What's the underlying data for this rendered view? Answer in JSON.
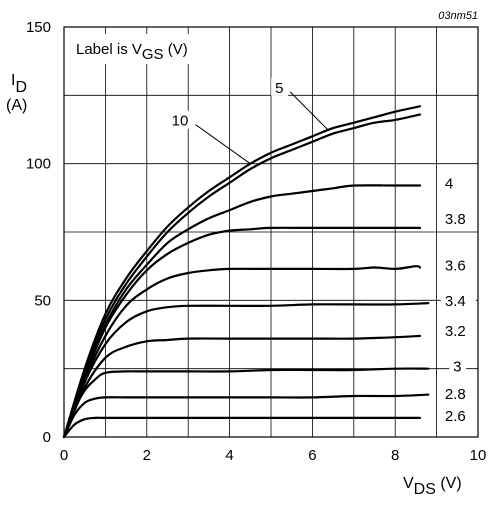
{
  "chart_data": {
    "type": "line",
    "reference_code": "03nm51",
    "legend_note": {
      "prefix": "Label is V",
      "sub": "GS",
      "suffix": " (V)"
    },
    "xlabel": {
      "main": "V",
      "sub": "DS",
      "unit": " (V)"
    },
    "ylabel": {
      "main": "I",
      "sub": "D",
      "unit": "(A)"
    },
    "xlim": [
      0,
      10
    ],
    "ylim": [
      0,
      150
    ],
    "x_ticks": [
      0,
      2,
      4,
      6,
      8,
      10
    ],
    "y_ticks": [
      0,
      50,
      100,
      150
    ],
    "grid": true,
    "series": [
      {
        "name": "10",
        "x": [
          0,
          0.5,
          1,
          1.5,
          2,
          2.5,
          3,
          3.5,
          4,
          4.5,
          5,
          5.5,
          6,
          6.5,
          7,
          7.5,
          8,
          8.6
        ],
        "y": [
          0,
          25,
          45,
          58,
          68,
          77,
          84,
          90,
          95,
          100,
          104,
          107,
          110,
          113,
          115,
          117,
          119,
          121
        ]
      },
      {
        "name": "5",
        "x": [
          0,
          0.5,
          1,
          1.5,
          2,
          2.5,
          3,
          3.5,
          4,
          4.5,
          5,
          5.5,
          6,
          6.5,
          7,
          7.5,
          8,
          8.6
        ],
        "y": [
          0,
          24,
          43,
          56,
          66,
          75,
          82,
          88,
          93,
          98,
          102,
          105,
          108,
          111,
          113,
          115,
          116,
          118
        ]
      },
      {
        "name": "4",
        "x": [
          0,
          0.5,
          1,
          1.5,
          2,
          2.5,
          3,
          3.5,
          4,
          4.5,
          5,
          5.5,
          6,
          6.5,
          7,
          8,
          8.6
        ],
        "y": [
          0,
          23,
          41,
          54,
          63,
          71,
          76,
          80,
          83,
          86,
          88,
          89,
          90,
          91,
          92,
          92,
          92
        ]
      },
      {
        "name": "3.8",
        "x": [
          0,
          0.5,
          1,
          1.5,
          2,
          2.5,
          3,
          3.5,
          4,
          4.5,
          5,
          6,
          7,
          8,
          8.6
        ],
        "y": [
          0,
          22,
          40,
          52,
          61,
          67,
          71,
          74,
          75.5,
          76,
          76.5,
          76.5,
          76.5,
          76.5,
          76.5
        ]
      },
      {
        "name": "3.6",
        "x": [
          0,
          0.5,
          1,
          1.5,
          2,
          2.5,
          3,
          3.5,
          4,
          5,
          6,
          7,
          7.5,
          8,
          8.5,
          8.6
        ],
        "y": [
          0,
          21,
          37,
          48,
          54,
          58,
          60,
          61,
          61.5,
          61.5,
          61.5,
          61.5,
          62,
          61.5,
          62.5,
          62
        ]
      },
      {
        "name": "3.4",
        "x": [
          0,
          0.5,
          1,
          1.5,
          2,
          2.5,
          3,
          4,
          5,
          6,
          7,
          8,
          8.8
        ],
        "y": [
          0,
          20,
          34,
          42,
          46,
          47.5,
          48,
          48,
          48,
          48.5,
          48.5,
          48.5,
          49
        ]
      },
      {
        "name": "3.2",
        "x": [
          0,
          0.5,
          1,
          1.5,
          2,
          2.5,
          3,
          4,
          5,
          6,
          7,
          8,
          8.6
        ],
        "y": [
          0,
          18,
          29,
          33,
          35,
          35.5,
          36,
          36,
          36,
          36,
          36,
          36.5,
          37
        ]
      },
      {
        "name": "3",
        "x": [
          0,
          0.25,
          0.5,
          0.75,
          1,
          1.5,
          2,
          3,
          4,
          5,
          6,
          7,
          8,
          8.8
        ],
        "y": [
          0,
          10,
          17,
          21,
          23.5,
          24,
          24,
          24,
          24,
          24.5,
          24.5,
          24.5,
          25,
          25
        ]
      },
      {
        "name": "2.8",
        "x": [
          0,
          0.25,
          0.5,
          0.75,
          1,
          1.5,
          2,
          3,
          4,
          5,
          6,
          7,
          8,
          8.8
        ],
        "y": [
          0,
          8,
          12.5,
          14,
          14.5,
          14.5,
          14.5,
          14.5,
          14.5,
          14.5,
          14.5,
          15,
          15,
          15.5
        ]
      },
      {
        "name": "2.6",
        "x": [
          0,
          0.25,
          0.5,
          0.75,
          1,
          2,
          3,
          4,
          5,
          6,
          7,
          8,
          8.6
        ],
        "y": [
          0,
          4.5,
          6.5,
          7,
          7,
          7,
          7,
          7,
          7,
          7,
          7,
          7,
          7
        ]
      }
    ],
    "labels": [
      {
        "text": "10",
        "x": 2.6,
        "y": 115,
        "target": [
          4.5,
          100
        ]
      },
      {
        "text": "5",
        "x": 5.1,
        "y": 127,
        "target": [
          6.4,
          112
        ]
      },
      {
        "text": "4",
        "x": 9.2,
        "y": 92
      },
      {
        "text": "3.8",
        "x": 9.2,
        "y": 79
      },
      {
        "text": "3.6",
        "x": 9.2,
        "y": 62
      },
      {
        "text": "3.4",
        "x": 9.2,
        "y": 49
      },
      {
        "text": "3.2",
        "x": 9.2,
        "y": 38
      },
      {
        "text": "3",
        "x": 9.4,
        "y": 25
      },
      {
        "text": "2.8",
        "x": 9.2,
        "y": 15
      },
      {
        "text": "2.6",
        "x": 9.2,
        "y": 7
      }
    ]
  }
}
